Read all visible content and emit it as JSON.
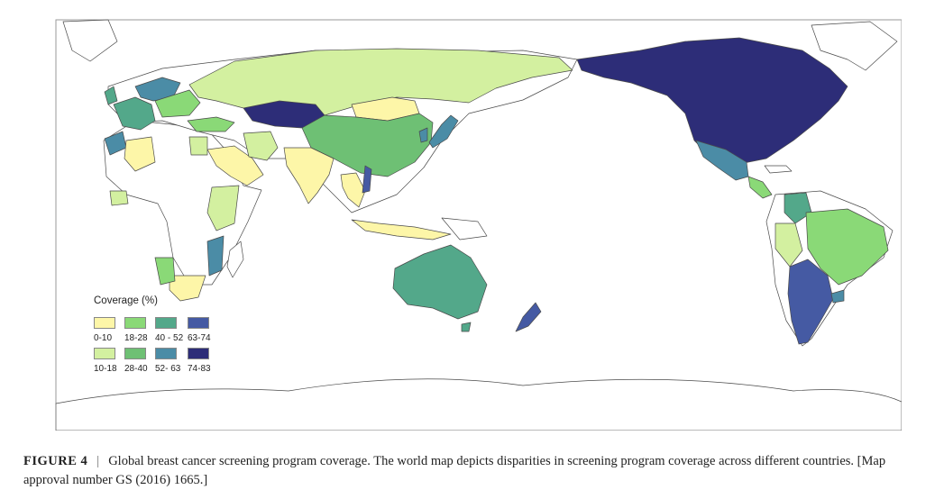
{
  "legend": {
    "title": "Coverage (%)",
    "bins": [
      {
        "label": "0-10",
        "color": "#fdf6a8"
      },
      {
        "label": "10-18",
        "color": "#d3f0a0"
      },
      {
        "label": "18-28",
        "color": "#8ad977"
      },
      {
        "label": "28-40",
        "color": "#6ec074"
      },
      {
        "label": "40 - 52",
        "color": "#53a88a"
      },
      {
        "label": "52- 63",
        "color": "#4b8ca6"
      },
      {
        "label": "63-74",
        "color": "#455aa3"
      },
      {
        "label": "74-83",
        "color": "#2d2d78"
      }
    ]
  },
  "caption": {
    "label": "FIGURE 4",
    "separator": "|",
    "text": "Global breast cancer screening program coverage. The world map depicts disparities in screening program coverage across different countries. [Map approval number GS (2016) 1665.]"
  },
  "regions": [
    {
      "name": "North America",
      "bin": 7
    },
    {
      "name": "Mexico",
      "bin": 5
    },
    {
      "name": "Central America",
      "bin": 2
    },
    {
      "name": "Colombia",
      "bin": 4
    },
    {
      "name": "Peru",
      "bin": 1
    },
    {
      "name": "Brazil",
      "bin": 2
    },
    {
      "name": "Argentina & Chile",
      "bin": 6
    },
    {
      "name": "Uruguay",
      "bin": 5
    },
    {
      "name": "Russia",
      "bin": 1
    },
    {
      "name": "Kazakhstan",
      "bin": 7
    },
    {
      "name": "Mongolia",
      "bin": 0
    },
    {
      "name": "China",
      "bin": 3
    },
    {
      "name": "Japan",
      "bin": 5
    },
    {
      "name": "South Korea",
      "bin": 5
    },
    {
      "name": "India",
      "bin": 0
    },
    {
      "name": "Arabian Peninsula",
      "bin": 0
    },
    {
      "name": "Iran",
      "bin": 1
    },
    {
      "name": "Turkey",
      "bin": 2
    },
    {
      "name": "Western Europe",
      "bin": 4
    },
    {
      "name": "Northern Europe",
      "bin": 5
    },
    {
      "name": "Eastern Europe",
      "bin": 2
    },
    {
      "name": "Algeria",
      "bin": 0
    },
    {
      "name": "Morocco",
      "bin": 5
    },
    {
      "name": "East Africa",
      "bin": 1
    },
    {
      "name": "Mozambique",
      "bin": 5
    },
    {
      "name": "Southern Africa",
      "bin": 0
    },
    {
      "name": "Namibia",
      "bin": 2
    },
    {
      "name": "Southeast Asia",
      "bin": 0
    },
    {
      "name": "Vietnam",
      "bin": 6
    },
    {
      "name": "Australia",
      "bin": 4
    },
    {
      "name": "New Zealand",
      "bin": 6
    }
  ]
}
